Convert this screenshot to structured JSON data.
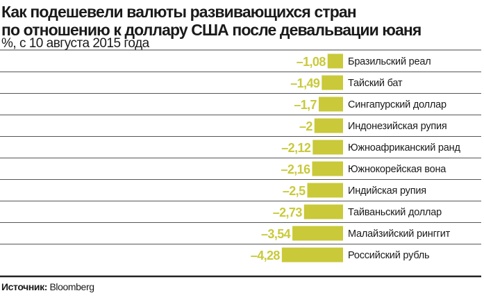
{
  "chart_data": {
    "type": "bar",
    "orientation": "horizontal",
    "title": "Как подешевели валюты развивающихся стран по отношению к доллару США после девальвации юаня",
    "title_lines": [
      "Как подешевели валюты развивающихся стран",
      "по отношению к доллару США после девальвации юаня"
    ],
    "subtitle": "%, с 10 августа 2015 года",
    "categories": [
      "Бразильский реал",
      "Тайский бат",
      "Сингапурский доллар",
      "Индонезийская рупия",
      "Южноафриканский ранд",
      "Южнокорейская вона",
      "Индийская рупия",
      "Тайваньский доллар",
      "Малайзийский ринггит",
      "Российский рубль"
    ],
    "values": [
      -1.08,
      -1.49,
      -1.7,
      -2,
      -2.12,
      -2.16,
      -2.5,
      -2.73,
      -3.54,
      -4.28
    ],
    "value_labels": [
      "–1,08",
      "–1,49",
      "–1,7",
      "–2",
      "–2,12",
      "–2,16",
      "–2,5",
      "–2,73",
      "–3,54",
      "–4,28"
    ],
    "bar_color": "#c9c93a",
    "grid": false,
    "legend": "none"
  },
  "source": {
    "label": "Источник:",
    "value": "Bloomberg"
  }
}
